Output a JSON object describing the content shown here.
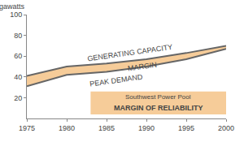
{
  "chart_data": {
    "type": "line",
    "y_label": "Gigawatts",
    "x": [
      1975,
      1980,
      1985,
      1990,
      1995,
      2000
    ],
    "series": [
      {
        "name": "GENERATING CAPACITY",
        "color": "#666666",
        "values": [
          41,
          50,
          53,
          57,
          63,
          70
        ]
      },
      {
        "name": "PEAK DEMAND",
        "color": "#666666",
        "values": [
          31,
          42,
          45,
          50,
          57,
          67
        ]
      }
    ],
    "annotations": [
      "MARGIN",
      "Southwest Power Pool",
      "MARGIN OF RELIABILITY"
    ],
    "xlim": [
      1975,
      2000
    ],
    "xticks": [
      1975,
      1980,
      1985,
      1990,
      1995,
      2000
    ],
    "ylim": [
      0,
      100
    ],
    "yticks": [
      20,
      40,
      60,
      80,
      100
    ],
    "grid": false
  }
}
